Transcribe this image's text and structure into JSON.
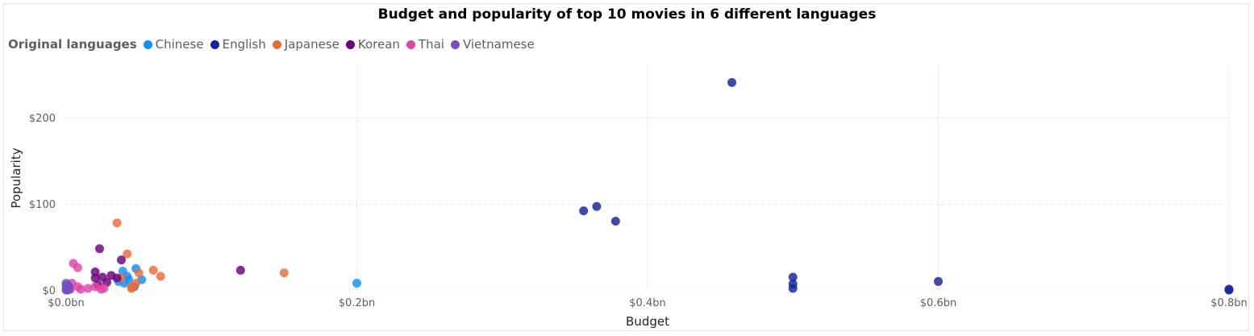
{
  "chart_data": {
    "type": "scatter",
    "title": "Budget and popularity of top 10 movies in 6 different languages",
    "xlabel": "Budget",
    "ylabel": "Popularity",
    "xlim": [
      0,
      0.8
    ],
    "ylim": [
      0,
      240
    ],
    "x_ticks": [
      "$0.0bn",
      "$0.2bn",
      "$0.4bn",
      "$0.6bn",
      "$0.8bn"
    ],
    "x_tick_values": [
      0,
      0.2,
      0.4,
      0.6,
      0.8
    ],
    "y_ticks": [
      "$0",
      "$100",
      "$200"
    ],
    "y_tick_values": [
      0,
      100,
      200
    ],
    "grid": true,
    "legend": {
      "title": "Original languages",
      "placement": "top-left"
    },
    "series": [
      {
        "name": "Chinese",
        "color": "#118DFF",
        "points": [
          [
            0.036,
            10
          ],
          [
            0.039,
            22
          ],
          [
            0.04,
            8
          ],
          [
            0.042,
            16
          ],
          [
            0.043,
            12
          ],
          [
            0.047,
            4
          ],
          [
            0.048,
            25
          ],
          [
            0.052,
            12
          ],
          [
            0.2,
            8
          ]
        ]
      },
      {
        "name": "English",
        "color": "#12239E",
        "points": [
          [
            0.356,
            92
          ],
          [
            0.365,
            97
          ],
          [
            0.378,
            80
          ],
          [
            0.458,
            241
          ],
          [
            0.5,
            15
          ],
          [
            0.5,
            7
          ],
          [
            0.5,
            2
          ],
          [
            0.6,
            10
          ],
          [
            0.8,
            1
          ],
          [
            0.8,
            0
          ]
        ]
      },
      {
        "name": "Japanese",
        "color": "#E66C37",
        "points": [
          [
            0.035,
            78
          ],
          [
            0.042,
            42
          ],
          [
            0.038,
            14
          ],
          [
            0.045,
            4
          ],
          [
            0.048,
            8
          ],
          [
            0.05,
            20
          ],
          [
            0.06,
            23
          ],
          [
            0.065,
            16
          ],
          [
            0.15,
            20
          ],
          [
            0.045,
            2
          ]
        ]
      },
      {
        "name": "Korean",
        "color": "#6B007B",
        "points": [
          [
            0.023,
            48
          ],
          [
            0.038,
            35
          ],
          [
            0.02,
            21
          ],
          [
            0.02,
            14
          ],
          [
            0.025,
            15
          ],
          [
            0.028,
            9
          ],
          [
            0.031,
            17
          ],
          [
            0.035,
            14
          ],
          [
            0.022,
            6
          ],
          [
            0.12,
            23
          ]
        ]
      },
      {
        "name": "Thai",
        "color": "#E044A7",
        "points": [
          [
            0.005,
            31
          ],
          [
            0.008,
            26
          ],
          [
            0.004,
            8
          ],
          [
            0.008,
            4
          ],
          [
            0.015,
            2
          ],
          [
            0.02,
            4
          ],
          [
            0.026,
            2
          ],
          [
            0.024,
            1
          ],
          [
            0.003,
            1
          ],
          [
            0.01,
            1
          ]
        ]
      },
      {
        "name": "Vietnamese",
        "color": "#744EC2",
        "points": [
          [
            0.0,
            8
          ],
          [
            0.0,
            5
          ],
          [
            0.001,
            3
          ],
          [
            0.001,
            2
          ],
          [
            0.0,
            1
          ],
          [
            0.002,
            1
          ],
          [
            0.001,
            0
          ],
          [
            0.0,
            0
          ],
          [
            0.002,
            4
          ],
          [
            0.001,
            6
          ]
        ]
      }
    ]
  }
}
